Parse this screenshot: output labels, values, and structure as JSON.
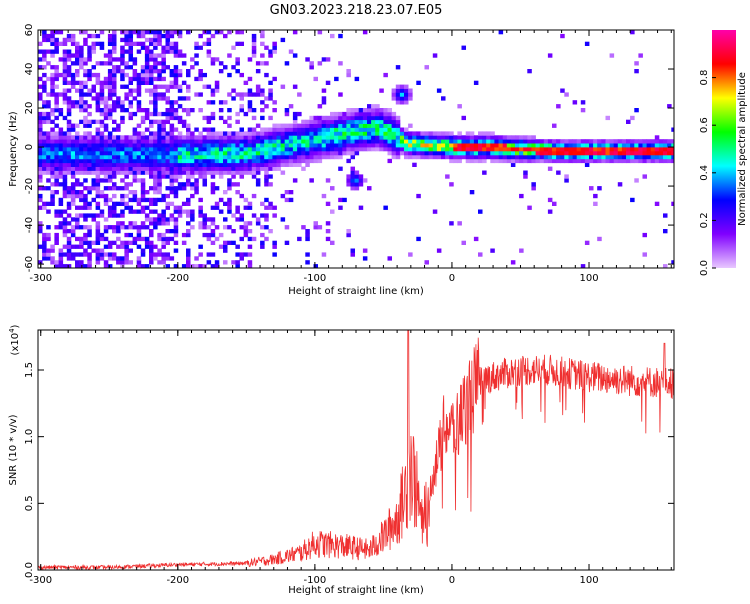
{
  "title": "GN03.2023.218.23.07.E05",
  "chart_data": [
    {
      "type": "heatmap",
      "xlabel": "Height of straight line (km)",
      "ylabel": "Frequency (Hz)",
      "xlim": [
        -302,
        162
      ],
      "ylim": [
        -62,
        60
      ],
      "xticks": [
        -300,
        -200,
        -100,
        0,
        100
      ],
      "yticks": [
        60,
        40,
        20,
        0,
        -20,
        -40,
        -60
      ],
      "colorbar": {
        "label": "Normalized spectral amplitude",
        "range": [
          0,
          1
        ],
        "ticks": [
          "0.0",
          "0.2",
          "0.4",
          "0.6",
          "0.8"
        ],
        "colors": [
          "#e9c8ff",
          "#8000ff",
          "#0000ff",
          "#00ffff",
          "#00ff00",
          "#ffff00",
          "#ff0000",
          "#ff00aa"
        ]
      },
      "ridge": {
        "x": [
          -300,
          -250,
          -200,
          -150,
          -100,
          -75,
          -55,
          -45,
          -35,
          -20,
          0,
          25,
          50,
          75,
          100,
          130,
          162
        ],
        "y": [
          -4,
          -5,
          -5,
          -4,
          3,
          7,
          9,
          6,
          1,
          0,
          -1,
          -1,
          -2,
          -3,
          -3,
          -3,
          -3
        ]
      },
      "features": [
        {
          "x": -38,
          "y": 26
        },
        {
          "x": -72,
          "y": -18
        }
      ]
    },
    {
      "type": "line",
      "xlabel": "Height of straight line (km)",
      "ylabel": "SNR (10 * v/v)",
      "ylabel_exponent": "(x10",
      "ylabel_exponent_power": "4",
      "ylabel_exponent_close": ")",
      "xlim": [
        -302,
        162
      ],
      "ylim": [
        0,
        1.8
      ],
      "xticks": [
        -300,
        -200,
        -100,
        0,
        100
      ],
      "yticks": [
        "0.0",
        "0.5",
        "1.0",
        "1.5"
      ],
      "series_color": "#ef3030",
      "envelope": {
        "x": [
          -302,
          -250,
          -200,
          -150,
          -130,
          -110,
          -100,
          -80,
          -60,
          -50,
          -40,
          -35,
          -30,
          -25,
          -22,
          -18,
          -15,
          -10,
          -5,
          0,
          5,
          10,
          20,
          30,
          50,
          70,
          100,
          130,
          162
        ],
        "y": [
          0.02,
          0.02,
          0.04,
          0.05,
          0.08,
          0.13,
          0.2,
          0.18,
          0.15,
          0.25,
          0.38,
          0.55,
          0.8,
          0.55,
          0.35,
          0.2,
          0.7,
          0.85,
          1.1,
          1.05,
          1.1,
          1.25,
          1.42,
          1.45,
          1.5,
          1.5,
          1.45,
          1.42,
          1.4
        ]
      },
      "peaks": [
        {
          "x": -32,
          "y": 1.8
        },
        {
          "x": 155,
          "y": 1.7
        }
      ]
    }
  ]
}
